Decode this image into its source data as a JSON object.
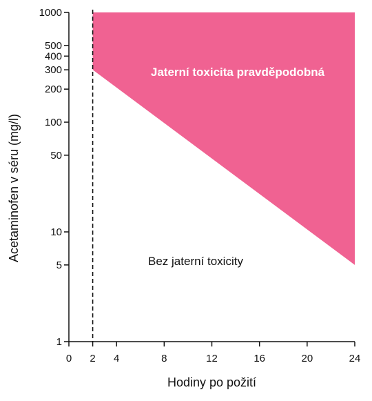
{
  "chart_data": {
    "type": "area",
    "xlabel": "Hodiny po požití",
    "ylabel": "Acetaminofen v séru (mg/l)",
    "xlim": [
      0,
      24
    ],
    "ylim": [
      1,
      1000
    ],
    "y_scale": "log",
    "x_ticks": [
      0,
      2,
      4,
      8,
      12,
      16,
      20,
      24
    ],
    "x_tick_labels": [
      "0",
      "2",
      "4",
      "8",
      "12",
      "16",
      "20",
      "24"
    ],
    "y_ticks": [
      1,
      5,
      10,
      50,
      100,
      200,
      300,
      400,
      500,
      1000
    ],
    "y_tick_labels": [
      "1",
      "5",
      "10",
      "50",
      "100",
      "200",
      "300",
      "400",
      "500",
      "1000"
    ],
    "grid": false,
    "reference_line": {
      "x": 2,
      "style": "dashed"
    },
    "threshold_line": {
      "x": [
        2,
        24
      ],
      "y": [
        300,
        5
      ]
    },
    "regions": [
      {
        "label": "Jaterní toxicita pravděpodobná",
        "color": "#f06292",
        "above_threshold": true
      },
      {
        "label": "Bez jaterní toxicity",
        "color": "#ffffff",
        "above_threshold": false
      }
    ],
    "colors": {
      "fill": "#f06292",
      "axis": "#111111",
      "annotation_on_fill": "#ffffff",
      "annotation_on_white": "#111111"
    }
  }
}
